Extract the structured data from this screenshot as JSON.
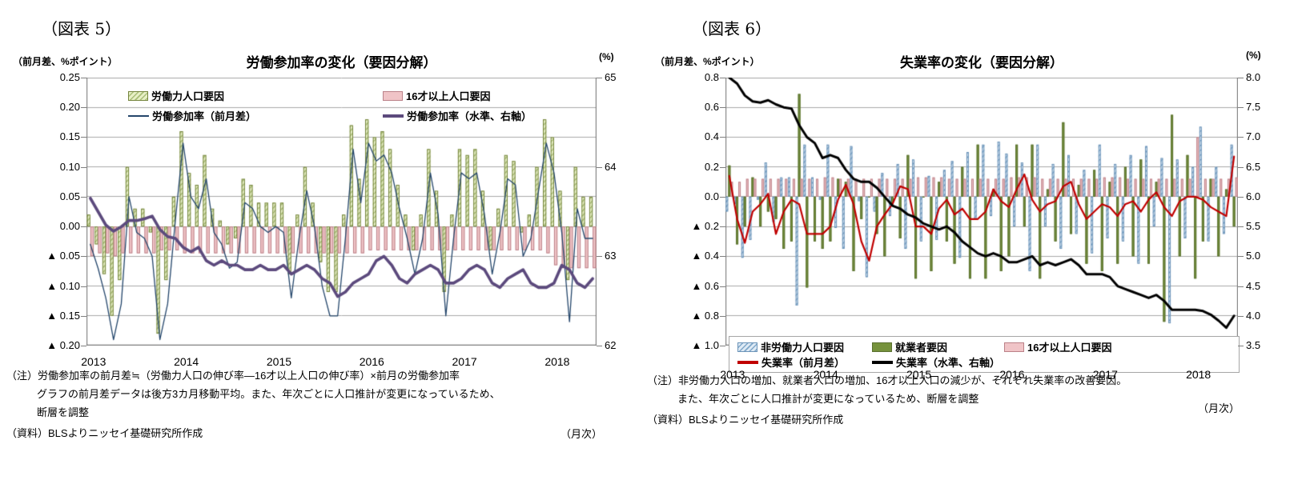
{
  "page": {
    "background": "#ffffff"
  },
  "chart_data": [
    {
      "id": "fig5",
      "type": "bar",
      "subtype": "grouped monthly bars with two overlay lines (dual axis)",
      "fig_label": "（図表 5）",
      "title": "労働参加率の変化（要因分解）",
      "left_axis_label": "（前月差、%ポイント）",
      "right_axis_label": "(%)",
      "freq_label": "（月次）",
      "start_month": "2013-01",
      "months": 66,
      "left_range": [
        -0.2,
        0.25
      ],
      "right_range": [
        62,
        65
      ],
      "left_ticks": [
        "0.25",
        "0.20",
        "0.15",
        "0.10",
        "0.05",
        "0.00",
        "▲ 0.05",
        "▲ 0.10",
        "▲ 0.15",
        "▲ 0.20"
      ],
      "right_ticks": [
        "65",
        "64",
        "63",
        "62"
      ],
      "x_year_labels": [
        "2013",
        "2014",
        "2015",
        "2016",
        "2017",
        "2018"
      ],
      "grid": true,
      "legend_position": "top-inside",
      "legend": [
        {
          "label": "労働力人口要因",
          "swatch": "green-hatched"
        },
        {
          "label": "16才以上人口要因",
          "swatch": "pink-bar"
        },
        {
          "label": "労働参加率（前月差）",
          "swatch": "thin-navy-line"
        },
        {
          "label": "労働参加率（水準、右軸）",
          "swatch": "thick-purple-line"
        }
      ],
      "series": [
        {
          "name": "労働力人口要因",
          "type": "bar",
          "style": "green-hatched",
          "axis": "left",
          "values": [
            0.02,
            -0.03,
            -0.08,
            -0.15,
            -0.09,
            0.1,
            0.03,
            0.03,
            -0.01,
            -0.18,
            -0.09,
            0.05,
            0.16,
            0.09,
            0.07,
            0.12,
            0.03,
            0.01,
            -0.03,
            -0.02,
            0.08,
            0.07,
            0.04,
            0.04,
            0.04,
            0.04,
            -0.08,
            0.02,
            0.1,
            0.04,
            -0.06,
            -0.11,
            -0.11,
            0.02,
            0.17,
            0.08,
            0.18,
            0.15,
            0.16,
            0.13,
            0.07,
            0.02,
            -0.04,
            0.02,
            0.13,
            0.06,
            -0.11,
            0.02,
            0.13,
            0.12,
            0.13,
            0.06,
            -0.04,
            0.03,
            0.12,
            0.11,
            -0.01,
            0.02,
            0.1,
            0.18,
            0.15,
            0.06,
            -0.09,
            0.1,
            0.05,
            0.05
          ]
        },
        {
          "name": "16才以上人口要因",
          "type": "bar",
          "style": "pink-bar",
          "axis": "left",
          "values": [
            -0.05,
            -0.045,
            -0.045,
            -0.05,
            -0.045,
            -0.045,
            -0.045,
            -0.045,
            -0.045,
            -0.04,
            -0.04,
            -0.04,
            -0.045,
            -0.045,
            -0.045,
            -0.045,
            -0.045,
            -0.045,
            -0.045,
            -0.045,
            -0.045,
            -0.045,
            -0.045,
            -0.045,
            -0.045,
            -0.045,
            -0.045,
            -0.045,
            -0.045,
            -0.045,
            -0.045,
            -0.045,
            -0.045,
            -0.045,
            -0.045,
            -0.045,
            -0.04,
            -0.04,
            -0.04,
            -0.04,
            -0.04,
            -0.04,
            -0.04,
            -0.04,
            -0.04,
            -0.04,
            -0.04,
            -0.04,
            -0.04,
            -0.04,
            -0.04,
            -0.04,
            -0.04,
            -0.04,
            -0.04,
            -0.04,
            -0.04,
            -0.04,
            -0.04,
            -0.045,
            -0.065,
            -0.07,
            -0.07,
            -0.07,
            -0.07,
            -0.07
          ]
        },
        {
          "name": "労働参加率（前月差）",
          "type": "line",
          "style": "thin-navy-line",
          "axis": "left",
          "values": [
            -0.03,
            -0.07,
            -0.12,
            -0.19,
            -0.13,
            0.05,
            -0.01,
            -0.02,
            -0.05,
            -0.19,
            -0.13,
            0.01,
            0.14,
            0.05,
            0.03,
            0.08,
            -0.01,
            -0.03,
            -0.07,
            -0.06,
            0.04,
            0.03,
            0.0,
            -0.01,
            0.0,
            -0.01,
            -0.12,
            -0.02,
            0.06,
            0.0,
            -0.1,
            -0.15,
            -0.15,
            -0.02,
            0.13,
            0.04,
            0.14,
            0.11,
            0.12,
            0.09,
            0.03,
            -0.02,
            -0.08,
            -0.02,
            0.09,
            0.02,
            -0.15,
            -0.02,
            0.09,
            0.08,
            0.09,
            0.02,
            -0.08,
            -0.01,
            0.08,
            0.07,
            -0.05,
            -0.02,
            0.06,
            0.14,
            0.09,
            -0.01,
            -0.16,
            0.03,
            -0.02,
            -0.02
          ]
        },
        {
          "name": "労働参加率（水準、右軸）",
          "type": "line",
          "style": "thick-purple-line",
          "axis": "right",
          "values": [
            63.65,
            63.5,
            63.35,
            63.28,
            63.33,
            63.4,
            63.4,
            63.42,
            63.45,
            63.3,
            63.22,
            63.2,
            63.1,
            63.05,
            63.1,
            62.95,
            62.9,
            62.95,
            62.9,
            62.9,
            62.85,
            62.85,
            62.9,
            62.85,
            62.85,
            62.9,
            62.8,
            62.85,
            62.9,
            62.85,
            62.75,
            62.7,
            62.55,
            62.6,
            62.7,
            62.75,
            62.8,
            62.95,
            63.0,
            62.9,
            62.75,
            62.7,
            62.8,
            62.85,
            62.9,
            62.85,
            62.7,
            62.7,
            62.75,
            62.85,
            62.9,
            62.85,
            62.7,
            62.65,
            62.75,
            62.8,
            62.85,
            62.7,
            62.65,
            62.65,
            62.7,
            62.9,
            62.85,
            62.7,
            62.65,
            62.75
          ]
        }
      ],
      "notes": [
        "（注）労働参加率の前月差≒（労働力人口の伸び率―16才以上人口の伸び率）×前月の労働参加率",
        "グラフの前月差データは後方3カ月移動平均。また、年次ごとに人口推計が変更になっているため、",
        "断層を調整"
      ],
      "source": "（資料）BLSよりニッセイ基礎研究所作成",
      "colors": {
        "green_bar_fill": "#e7efc5",
        "green_bar_hatch": "#a9bd77",
        "green_bar_border": "#75853e",
        "pink_bar_fill": "#f0c4c7",
        "pink_bar_border": "#bb8188",
        "navy_line": "#24466b",
        "purple_line": "#5c4a7d",
        "grid": "#a9a9a9",
        "axis": "#7f7f7f"
      }
    },
    {
      "id": "fig6",
      "type": "bar",
      "subtype": "grouped monthly bars with two overlay lines (dual axis)",
      "fig_label": "（図表 6）",
      "title": "失業率の変化（要因分解）",
      "left_axis_label": "（前月差、%ポイント）",
      "right_axis_label": "(%)",
      "freq_label": "（月次）",
      "start_month": "2013-01",
      "months": 66,
      "left_range": [
        -1.0,
        0.8
      ],
      "right_range": [
        3.5,
        8.0
      ],
      "left_ticks": [
        "0.8",
        "0.6",
        "0.4",
        "0.2",
        "0.0",
        "▲ 0.2",
        "▲ 0.4",
        "▲ 0.6",
        "▲ 0.8",
        "▲ 1.0"
      ],
      "right_ticks": [
        "8.0",
        "7.5",
        "7.0",
        "6.5",
        "6.0",
        "5.5",
        "5.0",
        "4.5",
        "4.0",
        "3.5"
      ],
      "x_year_labels": [
        "2013",
        "2014",
        "2015",
        "2016",
        "2017",
        "2018"
      ],
      "grid": true,
      "legend_position": "bottom-inside-box",
      "legend": [
        {
          "label": "非労働力人口要因",
          "swatch": "blue-hatched"
        },
        {
          "label": "就業者要因",
          "swatch": "green-solid"
        },
        {
          "label": "16才以上人口要因",
          "swatch": "pink-bar"
        },
        {
          "label": "失業率（前月差）",
          "swatch": "red-line"
        },
        {
          "label": "失業率（水準、右軸）",
          "swatch": "black-line"
        }
      ],
      "series": [
        {
          "name": "非労働力人口要因",
          "type": "bar",
          "style": "blue-hatched",
          "axis": "left",
          "values": [
            -0.1,
            -0.05,
            -0.41,
            -0.29,
            -0.02,
            0.23,
            -0.17,
            0.13,
            0.13,
            -0.73,
            0.35,
            0.13,
            -0.02,
            0.35,
            -0.21,
            -0.35,
            0.34,
            -0.03,
            -0.54,
            -0.1,
            0.16,
            -0.13,
            0.22,
            -0.35,
            0.25,
            -0.3,
            0.14,
            -0.29,
            0.18,
            0.24,
            -0.41,
            0.3,
            -0.15,
            0.35,
            -0.13,
            0.37,
            0.29,
            -0.2,
            0.23,
            -0.5,
            0.35,
            -0.2,
            0.22,
            -0.35,
            0.28,
            -0.25,
            0.18,
            -0.38,
            0.35,
            -0.28,
            0.22,
            -0.3,
            0.28,
            -0.45,
            0.34,
            -0.2,
            0.26,
            -0.85,
            0.25,
            -0.28,
            0.2,
            0.47,
            -0.3,
            0.2,
            -0.25,
            0.35
          ]
        },
        {
          "name": "就業者要因",
          "type": "bar",
          "style": "green-solid",
          "axis": "left",
          "values": [
            0.21,
            -0.32,
            -0.2,
            0.13,
            -0.2,
            -0.1,
            -0.15,
            -0.35,
            -0.3,
            0.69,
            -0.61,
            -0.3,
            -0.35,
            -0.3,
            0.12,
            0.1,
            -0.5,
            -0.15,
            0.0,
            -0.25,
            -0.4,
            -0.05,
            -0.28,
            0.28,
            -0.55,
            0.0,
            -0.5,
            0.1,
            -0.3,
            -0.45,
            0.2,
            -0.55,
            0.35,
            -0.55,
            0.05,
            -0.5,
            -0.4,
            0.35,
            -0.2,
            0.35,
            -0.55,
            0.05,
            -0.3,
            0.5,
            -0.25,
            0.08,
            -0.45,
            0.18,
            -0.5,
            0.1,
            -0.45,
            0.2,
            -0.4,
            0.25,
            -0.45,
            0.1,
            -0.84,
            0.55,
            -0.4,
            0.28,
            -0.55,
            -0.3,
            0.12,
            -0.4,
            0.05,
            -0.2
          ]
        },
        {
          "name": "16才以上人口要因",
          "type": "bar",
          "style": "pink-bar",
          "axis": "left",
          "values": [
            0.1,
            0.1,
            0.12,
            0.12,
            0.12,
            0.12,
            0.12,
            0.12,
            0.12,
            0.12,
            0.12,
            0.12,
            0.13,
            0.13,
            0.12,
            0.12,
            0.12,
            0.12,
            0.12,
            0.12,
            0.12,
            0.12,
            0.12,
            0.12,
            0.13,
            0.13,
            0.13,
            0.13,
            0.12,
            0.12,
            0.12,
            0.12,
            0.12,
            0.12,
            0.12,
            0.12,
            0.13,
            0.13,
            0.13,
            0.13,
            0.12,
            0.12,
            0.12,
            0.12,
            0.12,
            0.12,
            0.12,
            0.12,
            0.13,
            0.13,
            0.13,
            0.12,
            0.12,
            0.12,
            0.12,
            0.12,
            0.12,
            0.12,
            0.12,
            0.12,
            0.4,
            0.12,
            0.12,
            0.12,
            0.12,
            0.13
          ]
        },
        {
          "name": "失業率（前月差）",
          "type": "line",
          "style": "red-line",
          "axis": "left",
          "values": [
            0.14,
            -0.15,
            -0.31,
            -0.1,
            -0.05,
            0.02,
            -0.25,
            -0.1,
            -0.02,
            -0.05,
            -0.25,
            -0.25,
            -0.25,
            -0.2,
            -0.02,
            0.08,
            -0.05,
            -0.3,
            -0.43,
            -0.2,
            -0.12,
            -0.05,
            0.07,
            0.05,
            -0.2,
            -0.2,
            -0.25,
            -0.08,
            -0.02,
            -0.12,
            -0.08,
            -0.15,
            -0.15,
            -0.1,
            0.05,
            -0.03,
            -0.07,
            0.05,
            0.15,
            -0.02,
            -0.1,
            -0.05,
            -0.03,
            0.07,
            0.1,
            -0.05,
            -0.15,
            -0.1,
            -0.05,
            -0.07,
            -0.13,
            -0.05,
            -0.03,
            -0.1,
            -0.02,
            0.03,
            -0.07,
            -0.13,
            -0.03,
            0.0,
            0.0,
            -0.02,
            -0.07,
            -0.1,
            -0.13,
            0.27
          ]
        },
        {
          "name": "失業率（水準、右軸）",
          "type": "line",
          "style": "black-line",
          "axis": "right",
          "values": [
            8.0,
            7.9,
            7.7,
            7.6,
            7.58,
            7.62,
            7.55,
            7.5,
            7.48,
            7.2,
            7.0,
            6.9,
            6.65,
            6.7,
            6.65,
            6.45,
            6.3,
            6.25,
            6.25,
            6.15,
            6.0,
            5.85,
            5.8,
            5.7,
            5.65,
            5.55,
            5.5,
            5.45,
            5.5,
            5.4,
            5.25,
            5.15,
            5.05,
            5.0,
            5.05,
            5.0,
            4.9,
            4.9,
            4.95,
            5.0,
            4.85,
            4.9,
            4.85,
            4.9,
            4.95,
            4.85,
            4.7,
            4.7,
            4.7,
            4.65,
            4.5,
            4.45,
            4.4,
            4.35,
            4.3,
            4.35,
            4.25,
            4.1,
            4.1,
            4.1,
            4.1,
            4.08,
            4.02,
            3.92,
            3.8,
            4.0
          ]
        }
      ],
      "notes": [
        "（注）非労働力人口の増加、就業者人口の増加、16才以上人口の減少が、それぞれ失業率の改善要因。",
        "また、年次ごとに人口推計が変更になっているため、断層を調整"
      ],
      "source": "（資料）BLSよりニッセイ基礎研究所作成",
      "colors": {
        "blue_bar_fill": "#dde9f4",
        "blue_bar_hatch": "#7fa7c9",
        "blue_bar_border": "#6b93b8",
        "green_bar_fill": "#76923c",
        "green_bar_border": "#5a7030",
        "pink_bar_fill": "#f0c4c7",
        "pink_bar_border": "#bb8188",
        "red_line": "#c00000",
        "black_line": "#000000",
        "grid": "#a9a9a9",
        "axis": "#7f7f7f"
      }
    }
  ]
}
